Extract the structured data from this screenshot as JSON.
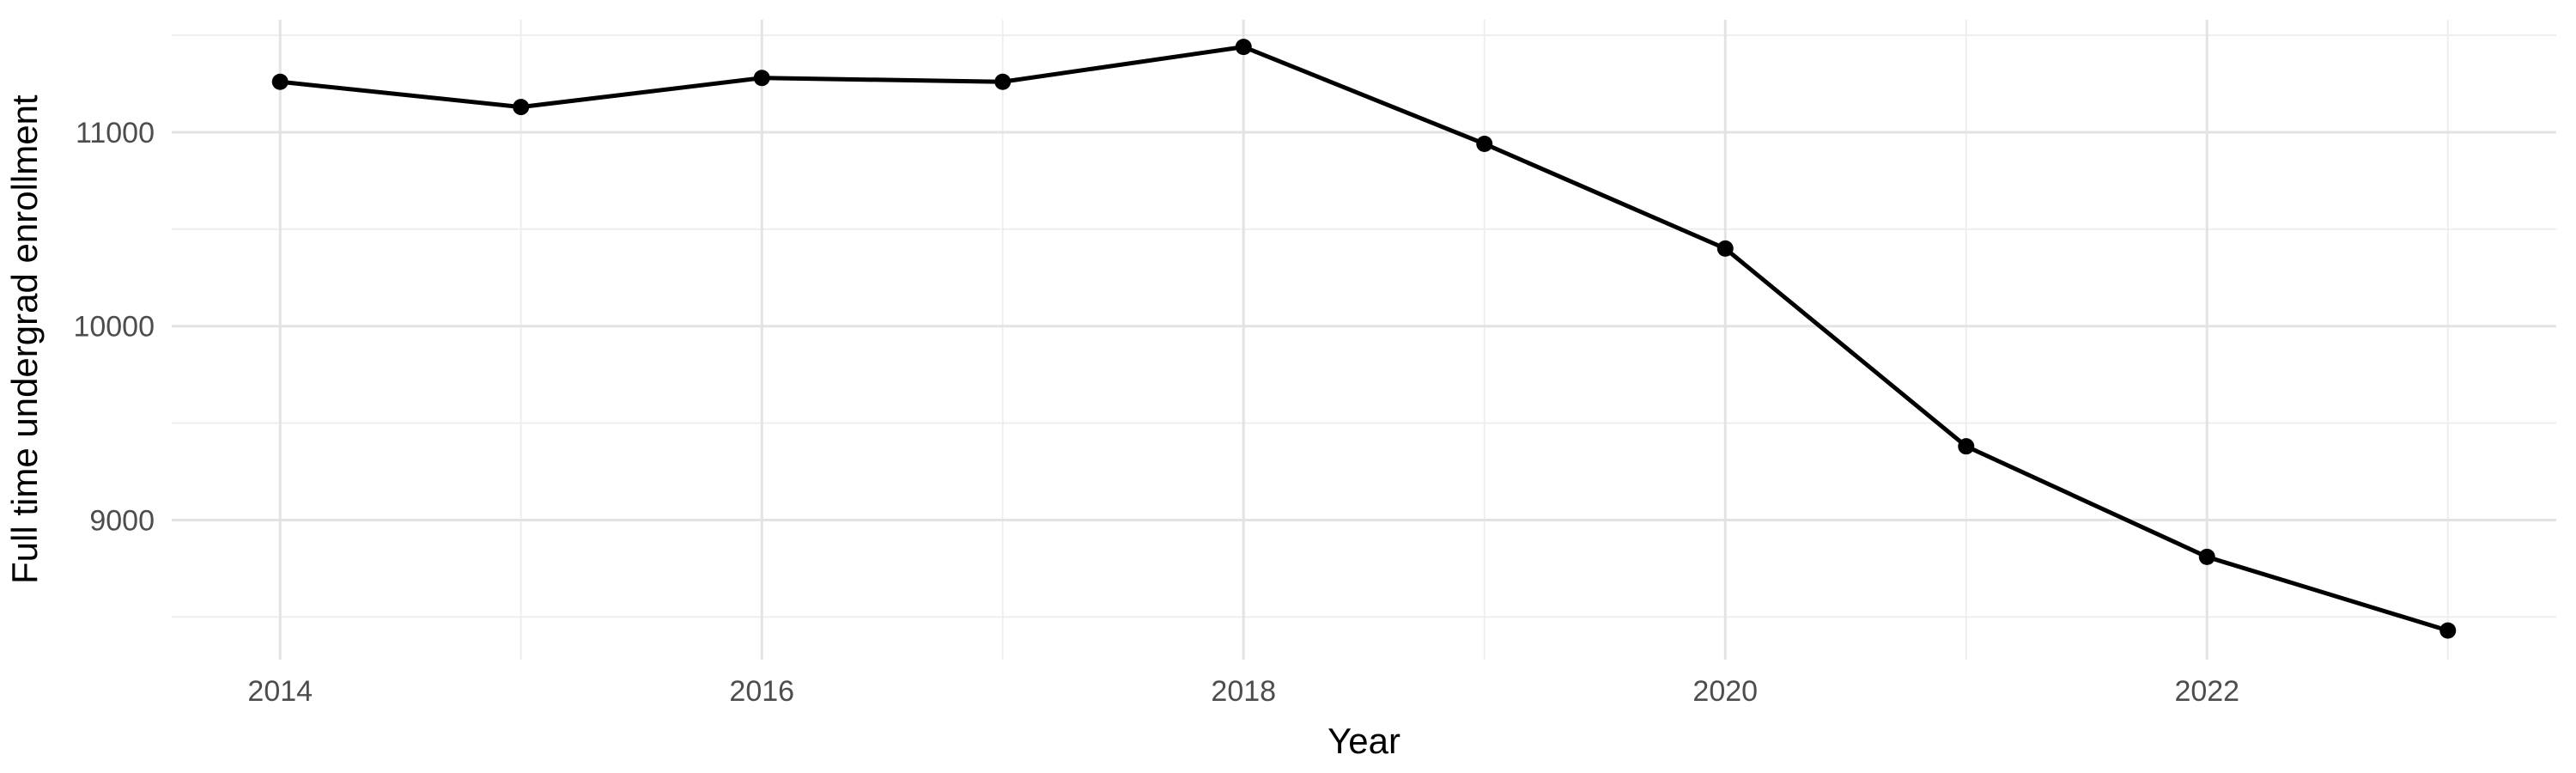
{
  "figure": {
    "background_color": "#ffffff",
    "grid_major_color": "#e3e3e3",
    "grid_minor_color": "#ededed",
    "tick_label_color": "#4d4d4d",
    "axis_title_color": "#000000",
    "line_color": "#000000",
    "marker_color": "#000000"
  },
  "chart_data": {
    "type": "line",
    "title": "",
    "xlabel": "Year",
    "ylabel": "Full time undergrad enrollment",
    "x": [
      2014,
      2015,
      2016,
      2017,
      2018,
      2019,
      2020,
      2021,
      2022,
      2023
    ],
    "values": [
      11260,
      11130,
      11280,
      11260,
      11440,
      10940,
      10400,
      9380,
      8810,
      8430
    ],
    "series_name": "Full time undergrad enrollment",
    "x_major_ticks": [
      2014,
      2016,
      2018,
      2020,
      2022
    ],
    "x_major_tick_labels": [
      "2014",
      "2016",
      "2018",
      "2020",
      "2022"
    ],
    "x_minor_ticks": [
      2015,
      2017,
      2019,
      2021,
      2023
    ],
    "y_major_ticks": [
      9000,
      10000,
      11000
    ],
    "y_major_tick_labels": [
      "9000",
      "10000",
      "11000"
    ],
    "y_minor_ticks": [
      8500,
      9500,
      10500,
      11500
    ],
    "xlim": [
      2013.55,
      2023.45
    ],
    "ylim": [
      8280,
      11580
    ],
    "grid": true,
    "legend": false,
    "marker": "circle"
  }
}
